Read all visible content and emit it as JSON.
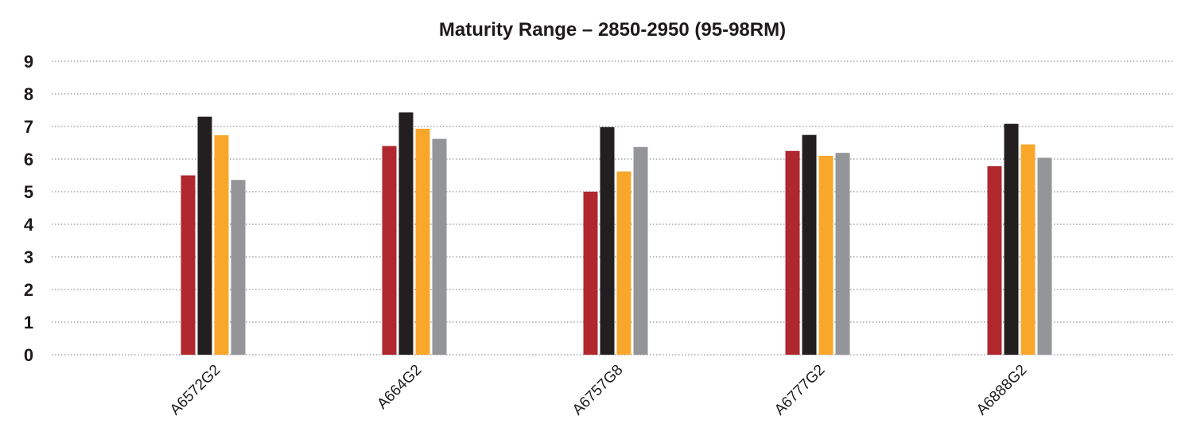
{
  "chart_data": {
    "type": "bar",
    "title": "Maturity Range – 2850-2950 (95-98RM)",
    "xlabel": "",
    "ylabel": "",
    "categories": [
      "A6572G2",
      "A664G2",
      "A6757G8",
      "A6777G2",
      "A6888G2"
    ],
    "ylim": [
      0,
      9
    ],
    "yticks": [
      0,
      1,
      2,
      3,
      4,
      5,
      6,
      7,
      8,
      9
    ],
    "grid": true,
    "legend": "none",
    "series": [
      {
        "color": "#b0272d",
        "values": [
          5.5,
          6.4,
          5.0,
          6.25,
          5.78
        ]
      },
      {
        "color": "#231f20",
        "values": [
          7.3,
          7.43,
          6.98,
          6.74,
          7.08
        ]
      },
      {
        "color": "#f9a72b",
        "values": [
          6.73,
          6.93,
          5.62,
          6.1,
          6.45
        ]
      },
      {
        "color": "#939598",
        "values": [
          5.36,
          6.62,
          6.37,
          6.19,
          6.04
        ]
      }
    ]
  }
}
